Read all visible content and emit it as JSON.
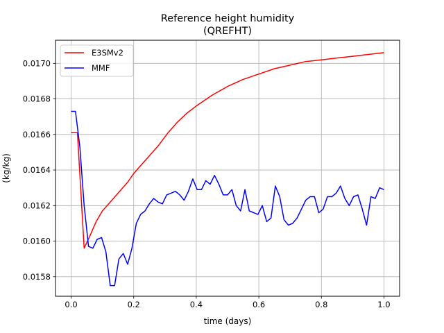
{
  "chart_data": {
    "type": "line",
    "title": "Reference height humidity",
    "subtitle": "(QREFHT)",
    "xlabel": "time (days)",
    "ylabel": "(kg/kg)",
    "xlim": [
      -0.05,
      1.05
    ],
    "ylim": [
      0.01569,
      0.01713
    ],
    "xticks": [
      0.0,
      0.2,
      0.4,
      0.6,
      0.8,
      1.0
    ],
    "xtick_labels": [
      "0.0",
      "0.2",
      "0.4",
      "0.6",
      "0.8",
      "1.0"
    ],
    "yticks": [
      0.0158,
      0.016,
      0.0162,
      0.0164,
      0.0166,
      0.0168,
      0.017
    ],
    "ytick_labels": [
      "0.0158",
      "0.0160",
      "0.0162",
      "0.0164",
      "0.0166",
      "0.0168",
      "0.0170"
    ],
    "grid": true,
    "legend_position": "top-left",
    "series": [
      {
        "name": "E3SMv2",
        "color": "#ff0000",
        "x": [
          0.0,
          0.02,
          0.0417,
          0.06,
          0.08,
          0.1,
          0.12,
          0.14,
          0.16,
          0.18,
          0.2,
          0.22,
          0.25,
          0.28,
          0.31,
          0.34,
          0.37,
          0.4,
          0.45,
          0.5,
          0.55,
          0.6,
          0.65,
          0.7,
          0.75,
          0.8,
          0.85,
          0.9,
          0.95,
          1.0
        ],
        "values": [
          0.01661,
          0.01661,
          0.01596,
          0.01603,
          0.01611,
          0.01617,
          0.01621,
          0.01625,
          0.01629,
          0.01633,
          0.01638,
          0.01642,
          0.01648,
          0.01654,
          0.01661,
          0.01667,
          0.01672,
          0.01676,
          0.01682,
          0.01687,
          0.01691,
          0.01694,
          0.01697,
          0.01699,
          0.01701,
          0.01702,
          0.01703,
          0.01704,
          0.01705,
          0.01706
        ]
      },
      {
        "name": "MMF",
        "color": "#0000ff",
        "x": [
          0.0,
          0.0139,
          0.0278,
          0.0417,
          0.0556,
          0.0694,
          0.0833,
          0.0972,
          0.1111,
          0.125,
          0.1389,
          0.1528,
          0.1667,
          0.1806,
          0.1944,
          0.2083,
          0.2222,
          0.2361,
          0.25,
          0.2639,
          0.2778,
          0.2917,
          0.3056,
          0.3194,
          0.3333,
          0.3472,
          0.3611,
          0.375,
          0.3889,
          0.4028,
          0.4167,
          0.4306,
          0.4444,
          0.4583,
          0.4722,
          0.4861,
          0.5,
          0.5139,
          0.5278,
          0.5417,
          0.5556,
          0.5694,
          0.5833,
          0.5972,
          0.6111,
          0.625,
          0.6389,
          0.6528,
          0.6667,
          0.6806,
          0.6944,
          0.7083,
          0.7222,
          0.7361,
          0.75,
          0.7639,
          0.7778,
          0.7917,
          0.8056,
          0.8194,
          0.8333,
          0.8472,
          0.8611,
          0.875,
          0.8889,
          0.9028,
          0.9167,
          0.9306,
          0.9444,
          0.9583,
          0.9722,
          0.9861,
          1.0
        ],
        "values": [
          0.01673,
          0.01673,
          0.01653,
          0.0162,
          0.01597,
          0.01596,
          0.01601,
          0.01602,
          0.01594,
          0.01575,
          0.01575,
          0.0159,
          0.01593,
          0.01587,
          0.01596,
          0.0161,
          0.01615,
          0.01617,
          0.01621,
          0.01624,
          0.01622,
          0.01621,
          0.01626,
          0.01627,
          0.01628,
          0.01626,
          0.01623,
          0.01628,
          0.01635,
          0.01629,
          0.01629,
          0.01634,
          0.01632,
          0.01637,
          0.01632,
          0.01626,
          0.01626,
          0.01629,
          0.0162,
          0.01617,
          0.01629,
          0.01617,
          0.01616,
          0.01615,
          0.0162,
          0.01611,
          0.01613,
          0.01631,
          0.01625,
          0.01612,
          0.01609,
          0.0161,
          0.01613,
          0.01618,
          0.01623,
          0.01625,
          0.01625,
          0.01616,
          0.01618,
          0.01625,
          0.01625,
          0.01627,
          0.01631,
          0.01624,
          0.0162,
          0.01625,
          0.01626,
          0.01618,
          0.01609,
          0.01625,
          0.01624,
          0.0163,
          0.01629
        ]
      }
    ]
  }
}
